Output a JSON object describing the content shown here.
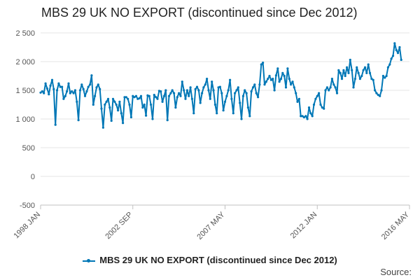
{
  "chart_data": {
    "type": "line",
    "title": "MBS 29 UK NO EXPORT (discontinued since Dec 2012)",
    "xlabel": "",
    "ylabel": "",
    "x_tick_labels": [
      "1998 JAN",
      "2002 SEP",
      "2007 MAY",
      "2012 JAN",
      "2016 MAY"
    ],
    "y_tick_labels": [
      "2 500",
      "2 000",
      "1 500",
      "1 000",
      "500",
      "0",
      "-500"
    ],
    "ylim": [
      -500,
      2500
    ],
    "grid": true,
    "legend_position": "bottom-center",
    "source_label": "Source:",
    "series": [
      {
        "name": "MBS 29 UK NO EXPORT (discontinued since Dec 2012)",
        "color": "#0077b6",
        "start": "1998 JAN",
        "frequency": "monthly",
        "values": [
          1460,
          1480,
          1450,
          1620,
          1530,
          1430,
          1580,
          1680,
          1520,
          900,
          1500,
          1620,
          1560,
          1560,
          1350,
          1400,
          1480,
          1620,
          1450,
          1480,
          1450,
          1500,
          1300,
          980,
          1500,
          1600,
          1520,
          1400,
          1480,
          1560,
          1600,
          1760,
          1250,
          1400,
          1550,
          1600,
          1520,
          1180,
          850,
          1250,
          1300,
          1350,
          1200,
          970,
          1350,
          1300,
          1250,
          1150,
          1300,
          1100,
          930,
          1380,
          1380,
          1350,
          1250,
          1030,
          1400,
          1380,
          1400,
          1350,
          1360,
          1400,
          1200,
          1250,
          1060,
          1410,
          1400,
          1250,
          1000,
          1420,
          1380,
          1350,
          1490,
          1480,
          1300,
          1400,
          1500,
          980,
          1400,
          1450,
          1500,
          1450,
          1200,
          1380,
          1450,
          1400,
          1650,
          1500,
          1350,
          1500,
          1400,
          1550,
          1350,
          1100,
          1520,
          1560,
          1500,
          1280,
          1450,
          1550,
          1600,
          1700,
          1500,
          1350,
          1650,
          1500,
          1250,
          1100,
          1550,
          1560,
          1450,
          1150,
          1300,
          1400,
          1500,
          1680,
          1350,
          1100,
          1450,
          1500,
          1550,
          1280,
          1000,
          1400,
          1500,
          1450,
          1200,
          1050,
          1480,
          1550,
          1600,
          1450,
          1380,
          1600,
          1950,
          1980,
          1600,
          1650,
          1700,
          1750,
          1680,
          1700,
          1500,
          1760,
          1880,
          1650,
          1700,
          1800,
          1750,
          1550,
          1880,
          1700,
          1600,
          1650,
          1550,
          1450,
          1300,
          1350,
          1050,
          1050,
          1030,
          1050,
          1000,
          1200,
          1100,
          1050,
          1250,
          1350,
          1400,
          1450,
          1250,
          1200,
          1180,
          1500,
          1550,
          1500,
          1550,
          1700,
          1600,
          1550,
          1450,
          1850,
          1800,
          1700,
          1850,
          1750,
          1900,
          1800,
          2030,
          1850,
          1550,
          1700,
          1900,
          1800,
          1700,
          1750,
          1850,
          1900,
          1800,
          1950,
          1800,
          1700,
          1680,
          1500,
          1450,
          1420,
          1400,
          1500,
          1750,
          1720,
          1750,
          1900,
          1950,
          2050,
          2100,
          2320,
          2200,
          2150,
          2250,
          2030
        ]
      }
    ]
  }
}
